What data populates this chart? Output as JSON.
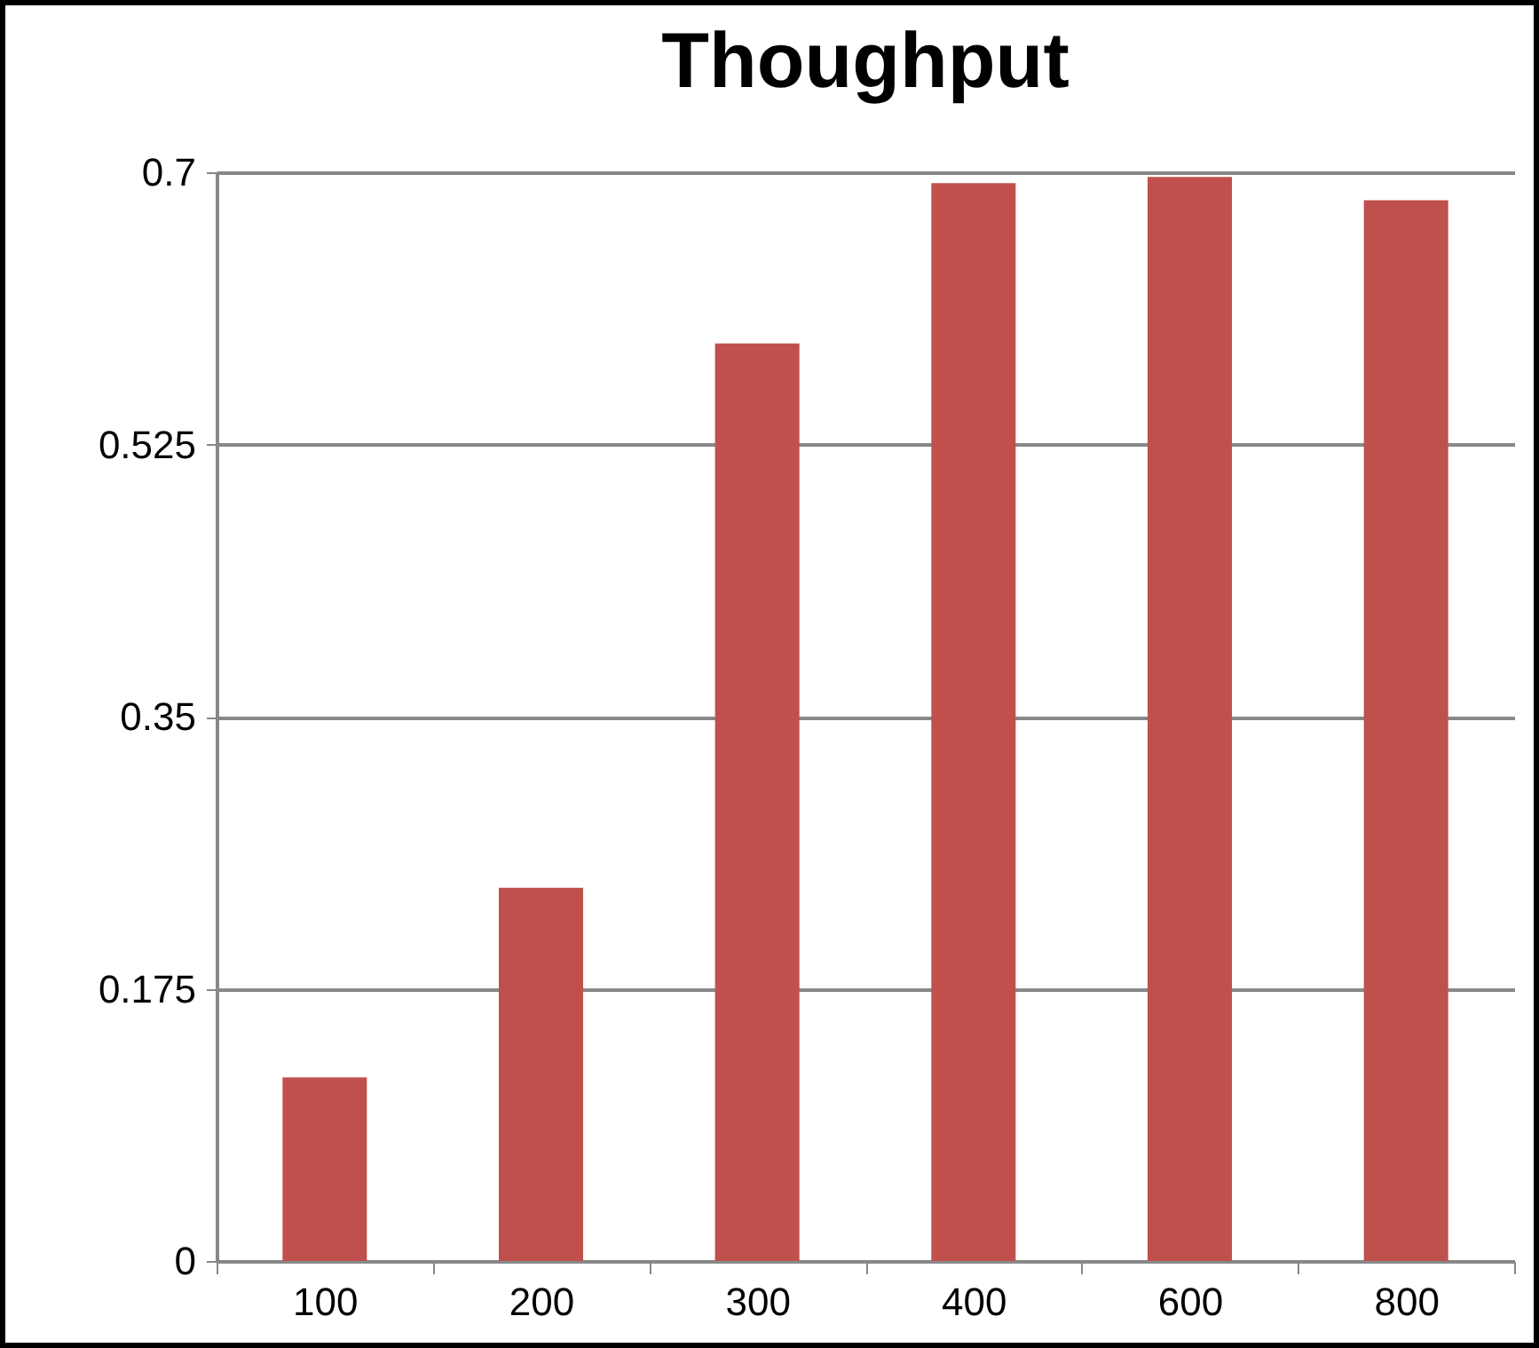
{
  "chart_data": {
    "type": "bar",
    "title": "Thoughput",
    "categories": [
      "100",
      "200",
      "300",
      "400",
      "600",
      "800"
    ],
    "values": [
      0.118,
      0.24,
      0.59,
      0.693,
      0.697,
      0.682
    ],
    "color": "#c0504d",
    "ylim": [
      0,
      0.7
    ],
    "yticks": [
      0,
      0.175,
      0.35,
      0.525,
      0.7
    ],
    "grid": "y"
  }
}
